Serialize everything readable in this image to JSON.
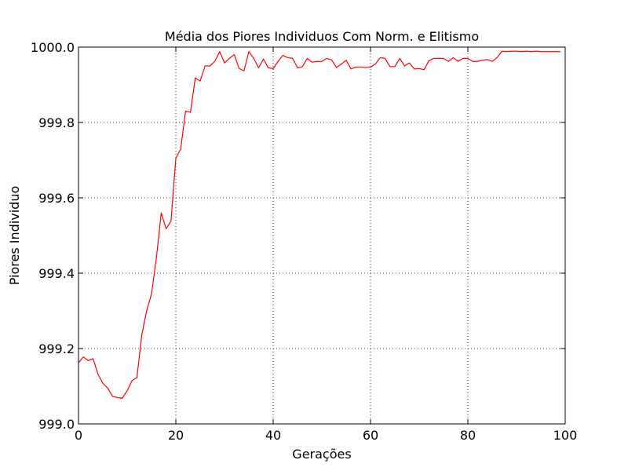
{
  "chart_data": {
    "type": "line",
    "title": "Média dos Piores Individuos Com Norm. e Elitismo",
    "xlabel": "Gerações",
    "ylabel": "Piores Individuo",
    "xlim": [
      0,
      100
    ],
    "ylim": [
      999.0,
      1000.0
    ],
    "xticks": [
      0,
      20,
      40,
      60,
      80,
      100
    ],
    "yticks": [
      999.0,
      999.2,
      999.4,
      999.6,
      999.8,
      1000.0
    ],
    "ytick_labels": [
      "999.0",
      "999.2",
      "999.4",
      "999.6",
      "999.8",
      "1000.0"
    ],
    "grid": true,
    "series": [
      {
        "color": "#ff0000",
        "x": [
          0,
          1,
          2,
          3,
          4,
          5,
          6,
          7,
          8,
          9,
          10,
          11,
          12,
          13,
          14,
          15,
          16,
          17,
          18,
          19,
          20,
          21,
          22,
          23,
          24,
          25,
          26,
          27,
          28,
          29,
          30,
          31,
          32,
          33,
          34,
          35,
          36,
          37,
          38,
          39,
          40,
          41,
          42,
          43,
          44,
          45,
          46,
          47,
          48,
          49,
          50,
          51,
          52,
          53,
          54,
          55,
          56,
          57,
          58,
          59,
          60,
          61,
          62,
          63,
          64,
          65,
          66,
          67,
          68,
          69,
          70,
          71,
          72,
          73,
          74,
          75,
          76,
          77,
          78,
          79,
          80,
          81,
          82,
          83,
          84,
          85,
          86,
          87,
          88,
          89,
          90,
          91,
          92,
          93,
          94,
          95,
          96,
          97,
          98,
          99
        ],
        "y": [
          999.162,
          999.178,
          999.168,
          999.173,
          999.132,
          999.108,
          999.095,
          999.073,
          999.07,
          999.068,
          999.088,
          999.115,
          999.123,
          999.235,
          999.3,
          999.345,
          999.44,
          999.56,
          999.518,
          999.538,
          999.705,
          999.73,
          999.83,
          999.827,
          999.918,
          999.91,
          999.95,
          999.95,
          999.962,
          999.988,
          999.958,
          999.97,
          999.98,
          999.943,
          999.937,
          999.988,
          999.97,
          999.945,
          999.968,
          999.945,
          999.943,
          999.962,
          999.978,
          999.972,
          999.97,
          999.945,
          999.948,
          999.97,
          999.96,
          999.962,
          999.962,
          999.97,
          999.966,
          999.946,
          999.955,
          999.965,
          999.942,
          999.947,
          999.947,
          999.946,
          999.947,
          999.955,
          999.972,
          999.97,
          999.948,
          999.948,
          999.97,
          999.95,
          999.958,
          999.942,
          999.943,
          999.94,
          999.964,
          999.97,
          999.97,
          999.97,
          999.962,
          999.972,
          999.962,
          999.97,
          999.97,
          999.962,
          999.962,
          999.965,
          999.967,
          999.962,
          999.972,
          999.989,
          999.988,
          999.989,
          999.989,
          999.988,
          999.989,
          999.988,
          999.989,
          999.988,
          999.988,
          999.988,
          999.988,
          999.988
        ]
      }
    ]
  }
}
